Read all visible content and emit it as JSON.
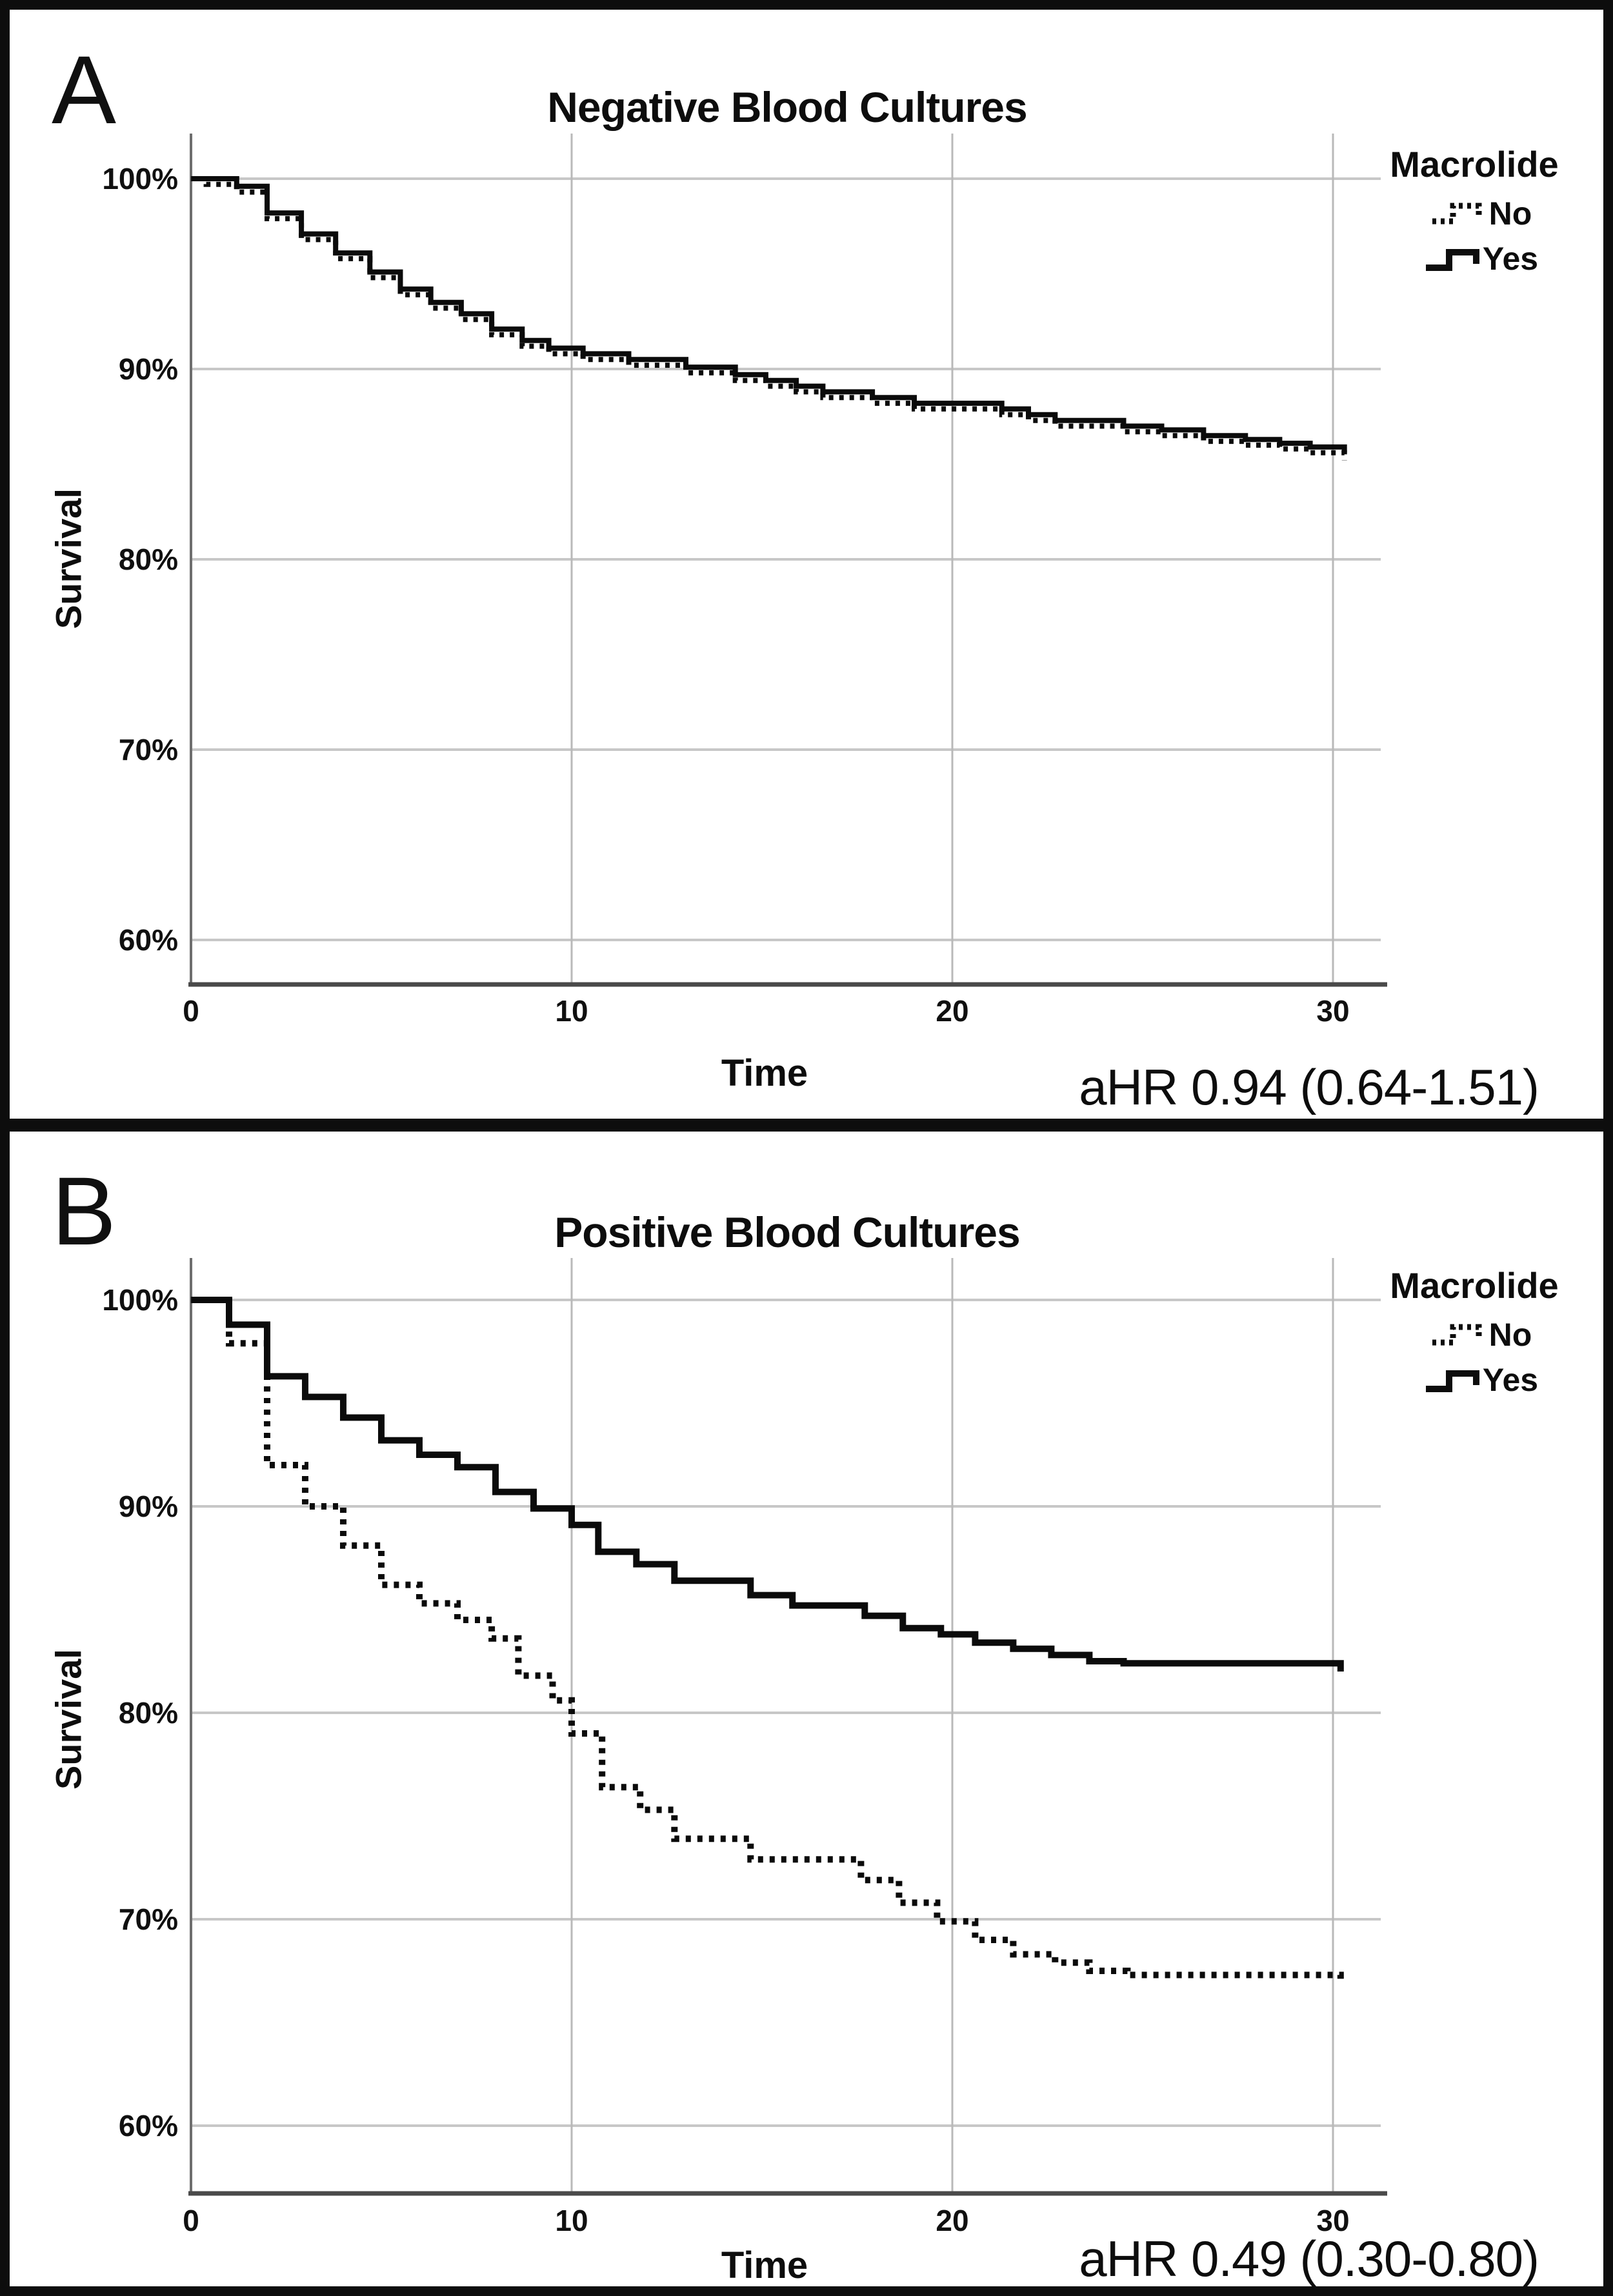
{
  "figure": {
    "panels": [
      {
        "panel_label": "A",
        "title": "Negative Blood Cultures",
        "ylabel": "Survival",
        "xlabel": "Time",
        "annotation": "aHR 0.94 (0.64-1.51)",
        "legend": {
          "title": "Macrolide",
          "items": [
            {
              "label": "No",
              "style": "dotted",
              "icon": "dotted-step-line-swatch"
            },
            {
              "label": "Yes",
              "style": "solid",
              "icon": "solid-step-line-swatch"
            }
          ]
        }
      },
      {
        "panel_label": "B",
        "title": "Positive Blood Cultures",
        "ylabel": "Survival",
        "xlabel": "Time",
        "annotation": "aHR 0.49 (0.30-0.80)",
        "legend": {
          "title": "Macrolide",
          "items": [
            {
              "label": "No",
              "style": "dotted",
              "icon": "dotted-step-line-swatch"
            },
            {
              "label": "Yes",
              "style": "solid",
              "icon": "solid-step-line-swatch"
            }
          ]
        }
      }
    ]
  },
  "chart_data": [
    {
      "type": "line",
      "subtype": "kaplan-meier-step",
      "title": "Negative Blood Cultures",
      "xlabel": "Time",
      "ylabel": "Survival",
      "xlim": [
        0,
        31.2
      ],
      "ylim": [
        57,
        102
      ],
      "xticks": [
        0,
        10,
        20,
        30
      ],
      "xtick_labels": [
        "0",
        "10",
        "20",
        "30"
      ],
      "yticks": [
        100,
        90,
        80,
        70,
        60
      ],
      "ytick_labels": [
        "100%",
        "90%",
        "80%",
        "70%",
        "60%"
      ],
      "grid": true,
      "legend_position": "top-right",
      "annotation": "aHR 0.94 (0.64-1.51)",
      "series": [
        {
          "name": "No",
          "style": "dotted",
          "points": [
            [
              0,
              100
            ],
            [
              0.4,
              99.7
            ],
            [
              1.2,
              99.3
            ],
            [
              2,
              97.9
            ],
            [
              2.9,
              96.8
            ],
            [
              3.8,
              95.8
            ],
            [
              4.7,
              94.8
            ],
            [
              5.5,
              93.9
            ],
            [
              6.3,
              93.2
            ],
            [
              7.1,
              92.6
            ],
            [
              7.9,
              91.8
            ],
            [
              8.7,
              91.2
            ],
            [
              9.4,
              90.8
            ],
            [
              10.3,
              90.5
            ],
            [
              11.5,
              90.2
            ],
            [
              13,
              89.8
            ],
            [
              14.3,
              89.4
            ],
            [
              15.1,
              89.1
            ],
            [
              15.9,
              88.8
            ],
            [
              16.6,
              88.5
            ],
            [
              17.9,
              88.2
            ],
            [
              19,
              87.9
            ],
            [
              21.3,
              87.6
            ],
            [
              22,
              87.3
            ],
            [
              22.7,
              87.0
            ],
            [
              24.5,
              86.7
            ],
            [
              25.5,
              86.5
            ],
            [
              26.6,
              86.2
            ],
            [
              27.7,
              86.0
            ],
            [
              28.6,
              85.8
            ],
            [
              29.4,
              85.6
            ],
            [
              30.3,
              85.5
            ],
            [
              30.3,
              85.2
            ]
          ]
        },
        {
          "name": "Yes",
          "style": "solid",
          "points": [
            [
              0,
              100
            ],
            [
              1.2,
              99.6
            ],
            [
              2,
              98.2
            ],
            [
              2.9,
              97.1
            ],
            [
              3.8,
              96.1
            ],
            [
              4.7,
              95.1
            ],
            [
              5.5,
              94.2
            ],
            [
              6.3,
              93.5
            ],
            [
              7.1,
              92.9
            ],
            [
              7.9,
              92.1
            ],
            [
              8.7,
              91.5
            ],
            [
              9.4,
              91.1
            ],
            [
              10.3,
              90.8
            ],
            [
              11.5,
              90.5
            ],
            [
              13,
              90.1
            ],
            [
              14.3,
              89.7
            ],
            [
              15.1,
              89.4
            ],
            [
              15.9,
              89.1
            ],
            [
              16.6,
              88.8
            ],
            [
              17.9,
              88.5
            ],
            [
              19,
              88.2
            ],
            [
              21.3,
              87.9
            ],
            [
              22,
              87.6
            ],
            [
              22.7,
              87.3
            ],
            [
              24.5,
              87.0
            ],
            [
              25.5,
              86.8
            ],
            [
              26.6,
              86.5
            ],
            [
              27.7,
              86.3
            ],
            [
              28.6,
              86.1
            ],
            [
              29.4,
              85.9
            ],
            [
              30.3,
              85.8
            ],
            [
              30.3,
              85.6
            ]
          ]
        }
      ]
    },
    {
      "type": "line",
      "subtype": "kaplan-meier-step",
      "title": "Positive Blood Cultures",
      "xlabel": "Time",
      "ylabel": "Survival",
      "xlim": [
        0,
        31.2
      ],
      "ylim": [
        57,
        102
      ],
      "xticks": [
        0,
        10,
        20,
        30
      ],
      "xtick_labels": [
        "0",
        "10",
        "20",
        "30"
      ],
      "yticks": [
        100,
        90,
        80,
        70,
        60
      ],
      "ytick_labels": [
        "100%",
        "90%",
        "80%",
        "70%",
        "60%"
      ],
      "grid": true,
      "legend_position": "top-right",
      "annotation": "aHR 0.49 (0.30-0.80)",
      "series": [
        {
          "name": "No",
          "style": "dotted",
          "points": [
            [
              0,
              100
            ],
            [
              1,
              97.9
            ],
            [
              2,
              92.0
            ],
            [
              3,
              90.0
            ],
            [
              4,
              88.1
            ],
            [
              5,
              86.2
            ],
            [
              6,
              85.3
            ],
            [
              7,
              84.5
            ],
            [
              7.9,
              83.6
            ],
            [
              8.6,
              81.8
            ],
            [
              9.5,
              80.6
            ],
            [
              10,
              79.0
            ],
            [
              10.8,
              76.4
            ],
            [
              11.8,
              75.3
            ],
            [
              12.7,
              73.9
            ],
            [
              14.7,
              72.9
            ],
            [
              17.6,
              71.9
            ],
            [
              18.6,
              70.8
            ],
            [
              19.6,
              69.9
            ],
            [
              20.6,
              69.0
            ],
            [
              21.6,
              68.3
            ],
            [
              22.7,
              67.9
            ],
            [
              23.6,
              67.5
            ],
            [
              24.6,
              67.3
            ],
            [
              30.2,
              67.3
            ],
            [
              30.2,
              67.0
            ]
          ]
        },
        {
          "name": "Yes",
          "style": "solid",
          "points": [
            [
              0,
              100
            ],
            [
              1,
              98.8
            ],
            [
              2,
              96.3
            ],
            [
              3,
              95.3
            ],
            [
              4,
              94.3
            ],
            [
              5,
              93.2
            ],
            [
              6,
              92.5
            ],
            [
              7,
              91.9
            ],
            [
              8,
              90.7
            ],
            [
              9,
              89.9
            ],
            [
              10,
              89.1
            ],
            [
              10.7,
              87.8
            ],
            [
              11.7,
              87.2
            ],
            [
              12.7,
              86.4
            ],
            [
              14.7,
              85.7
            ],
            [
              15.8,
              85.2
            ],
            [
              17.7,
              84.7
            ],
            [
              18.7,
              84.1
            ],
            [
              19.7,
              83.8
            ],
            [
              20.6,
              83.4
            ],
            [
              21.6,
              83.1
            ],
            [
              22.6,
              82.8
            ],
            [
              23.6,
              82.5
            ],
            [
              24.5,
              82.4
            ],
            [
              30.2,
              82.4
            ],
            [
              30.2,
              82.0
            ]
          ]
        }
      ]
    }
  ]
}
